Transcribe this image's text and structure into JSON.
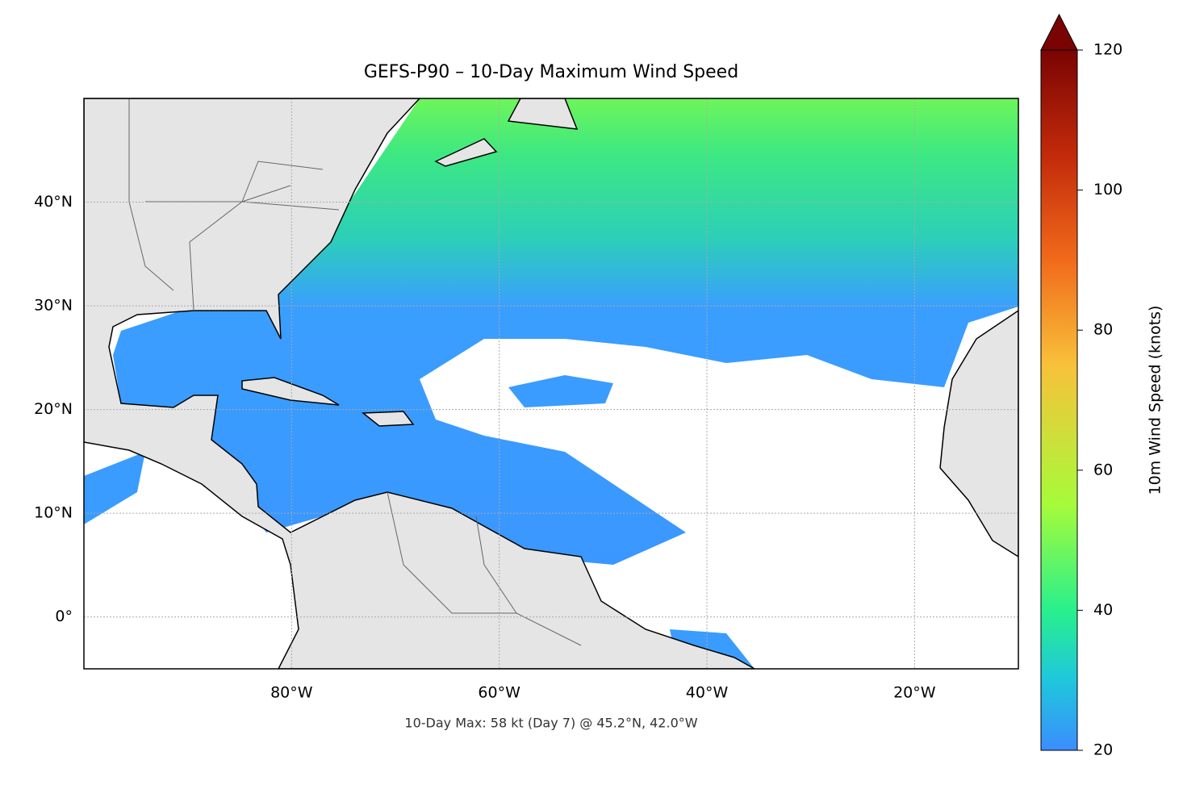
{
  "chart_data": {
    "type": "map",
    "title": "GEFS-P90 – 10-Day Maximum Wind Speed",
    "note": "10-Day Max: 58 kt (Day 7) @ 45.2°N, 42.0°W",
    "xlim": [
      -100,
      -10
    ],
    "ylim": [
      -5,
      50
    ],
    "xticks": [
      {
        "value": -80,
        "label": "80°W"
      },
      {
        "value": -60,
        "label": "60°W"
      },
      {
        "value": -40,
        "label": "40°W"
      },
      {
        "value": -20,
        "label": "20°W"
      }
    ],
    "yticks": [
      {
        "value": 0,
        "label": "0°"
      },
      {
        "value": 10,
        "label": "10°N"
      },
      {
        "value": 20,
        "label": "20°N"
      },
      {
        "value": 30,
        "label": "30°N"
      },
      {
        "value": 40,
        "label": "40°N"
      }
    ],
    "grid": true,
    "colorbar": {
      "label": "10m Wind Speed (knots)",
      "lim": [
        20,
        120
      ],
      "ticks": [
        20,
        40,
        60,
        80,
        100,
        120
      ],
      "extend": "max"
    }
  }
}
